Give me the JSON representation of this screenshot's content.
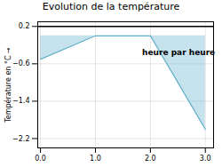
{
  "chart_data": {
    "type": "line",
    "title": "Evolution de la température",
    "ylabel": "Température en °C",
    "x": [
      0,
      1,
      2,
      3
    ],
    "values": [
      -0.5,
      0.0,
      0.0,
      -2.0
    ],
    "color": "#5bacc8",
    "xlim": [
      -0.05,
      3.15
    ],
    "ylim": [
      -2.4,
      0.3
    ],
    "xticks": [
      0,
      1,
      2,
      3
    ],
    "yticks": [
      0.2,
      -0.6,
      -1.4,
      -2.2
    ],
    "grid": true,
    "hline_y": 0.2,
    "annotations": [
      {
        "text": "heure par heure",
        "x": 1.85,
        "y": -0.3
      }
    ]
  }
}
